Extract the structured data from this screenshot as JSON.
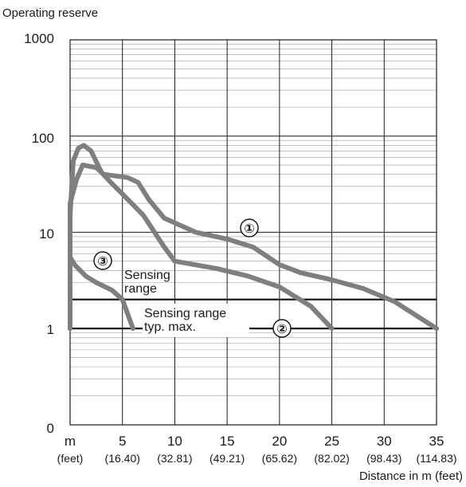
{
  "chart_data": {
    "type": "line",
    "title": "",
    "ylabel": "Operating reserve",
    "xlabel": "Distance in m (feet)",
    "x_unit_label": "m",
    "x_feet_unit_label": "(feet)",
    "xlim": [
      0,
      35
    ],
    "ylim": [
      1,
      1000
    ],
    "yscale": "log",
    "y_axis_bottom_label": "0",
    "x_ticks": [
      {
        "value": 5,
        "label": "5",
        "feet": "(16.40)"
      },
      {
        "value": 10,
        "label": "10",
        "feet": "(32.81)"
      },
      {
        "value": 15,
        "label": "15",
        "feet": "(49.21)"
      },
      {
        "value": 20,
        "label": "20",
        "feet": "(65.62)"
      },
      {
        "value": 25,
        "label": "25",
        "feet": "(82.02)"
      },
      {
        "value": 30,
        "label": "30",
        "feet": "(98.43)"
      },
      {
        "value": 35,
        "label": "35",
        "feet": "(114.83)"
      }
    ],
    "y_ticks": [
      {
        "value": 1,
        "label": "1"
      },
      {
        "value": 10,
        "label": "10"
      },
      {
        "value": 100,
        "label": "100"
      },
      {
        "value": 1000,
        "label": "1000"
      }
    ],
    "grid": true,
    "series": [
      {
        "name": "①",
        "color": "#7f7f7f",
        "points": [
          [
            0,
            1
          ],
          [
            0,
            20
          ],
          [
            0.6,
            35
          ],
          [
            1.2,
            50
          ],
          [
            2.5,
            47
          ],
          [
            3.2,
            40
          ],
          [
            5.5,
            37
          ],
          [
            6.5,
            33
          ],
          [
            7.5,
            22
          ],
          [
            9,
            14
          ],
          [
            12,
            10
          ],
          [
            15,
            8.5
          ],
          [
            17.5,
            7
          ],
          [
            20,
            4.6
          ],
          [
            22,
            3.8
          ],
          [
            25,
            3.2
          ],
          [
            28,
            2.6
          ],
          [
            31,
            1.9
          ],
          [
            35,
            1
          ]
        ]
      },
      {
        "name": "②",
        "color": "#7f7f7f",
        "points": [
          [
            0,
            1
          ],
          [
            0,
            15
          ],
          [
            0.3,
            55
          ],
          [
            0.8,
            75
          ],
          [
            1.3,
            80
          ],
          [
            2,
            70
          ],
          [
            3,
            42
          ],
          [
            4,
            32
          ],
          [
            5,
            25
          ],
          [
            7,
            15
          ],
          [
            9,
            7
          ],
          [
            10,
            5
          ],
          [
            14,
            4.2
          ],
          [
            17,
            3.5
          ],
          [
            20,
            2.7
          ],
          [
            23,
            1.7
          ],
          [
            25,
            1
          ]
        ]
      },
      {
        "name": "③",
        "color": "#7f7f7f",
        "points": [
          [
            0,
            1
          ],
          [
            0,
            5.5
          ],
          [
            0.5,
            4.5
          ],
          [
            1.5,
            3.5
          ],
          [
            2.5,
            3
          ],
          [
            4,
            2.5
          ],
          [
            5,
            2
          ],
          [
            6,
            1
          ]
        ]
      }
    ],
    "reference_lines": [
      {
        "name": "Sensing range",
        "value": 2
      },
      {
        "name": "Sensing range typ. max.",
        "value": 1
      }
    ],
    "annotations": {
      "marker_1": "①",
      "marker_2": "②",
      "marker_3": "③",
      "sensing_range_line1": "Sensing",
      "sensing_range_line2": "range",
      "sensing_max_line1": "Sensing range",
      "sensing_max_line2": "typ. max."
    }
  }
}
